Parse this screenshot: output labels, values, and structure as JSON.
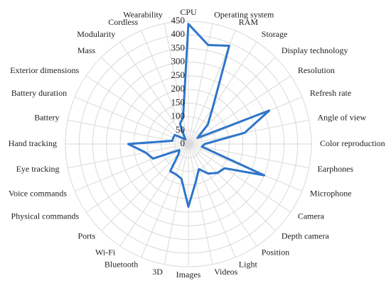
{
  "chart_data": {
    "type": "radar",
    "categories": [
      "CPU",
      "Operating system",
      "RAM",
      "Storage",
      "Display technology",
      "Resolution",
      "Refresh rate",
      "Angle of view",
      "Color reproduction",
      "Earphones",
      "Microphone",
      "Camera",
      "Depth camera",
      "Position",
      "Light",
      "Videos",
      "Images",
      "3D",
      "Bluetooth",
      "Wi-Fi",
      "Ports",
      "Physical commands",
      "Voice commands",
      "Eye tracking",
      "Hand tracking",
      "Battery",
      "Battery duration",
      "Exterior dimensions",
      "Mass",
      "Modularity",
      "Cordless",
      "Wearability"
    ],
    "values": [
      440,
      370,
      390,
      160,
      100,
      40,
      320,
      210,
      60,
      50,
      300,
      160,
      150,
      130,
      100,
      140,
      230,
      130,
      120,
      120,
      50,
      40,
      140,
      160,
      220,
      60,
      60,
      60,
      30,
      20,
      80,
      100
    ],
    "color": "#2e75c9",
    "ylim": [
      0,
      450
    ],
    "yticks": [
      0,
      50,
      100,
      150,
      200,
      250,
      300,
      350,
      400,
      450
    ],
    "grid": true
  }
}
